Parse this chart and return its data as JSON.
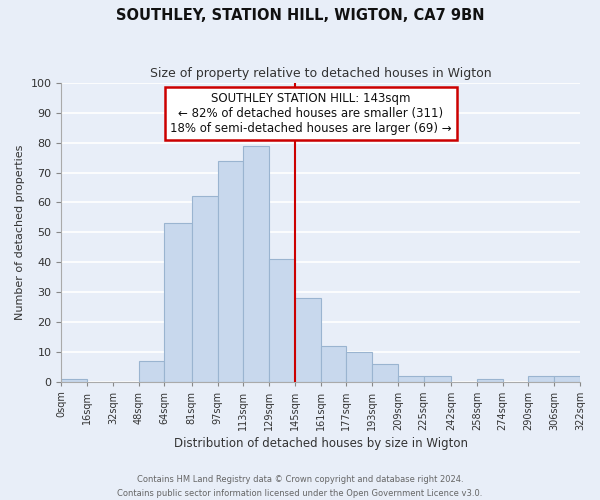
{
  "title": "SOUTHLEY, STATION HILL, WIGTON, CA7 9BN",
  "subtitle": "Size of property relative to detached houses in Wigton",
  "xlabel": "Distribution of detached houses by size in Wigton",
  "ylabel": "Number of detached properties",
  "bar_edges": [
    0,
    16,
    32,
    48,
    64,
    81,
    97,
    113,
    129,
    145,
    161,
    177,
    193,
    209,
    225,
    242,
    258,
    274,
    290,
    306,
    322
  ],
  "bar_heights": [
    1,
    0,
    0,
    7,
    53,
    62,
    74,
    79,
    41,
    28,
    12,
    10,
    6,
    2,
    2,
    0,
    1,
    0,
    2,
    2
  ],
  "bar_color": "#c8d8ed",
  "bar_edge_color": "#9ab4d0",
  "tick_labels": [
    "0sqm",
    "16sqm",
    "32sqm",
    "48sqm",
    "64sqm",
    "81sqm",
    "97sqm",
    "113sqm",
    "129sqm",
    "145sqm",
    "161sqm",
    "177sqm",
    "193sqm",
    "209sqm",
    "225sqm",
    "242sqm",
    "258sqm",
    "274sqm",
    "290sqm",
    "306sqm",
    "322sqm"
  ],
  "ylim": [
    0,
    100
  ],
  "yticks": [
    0,
    10,
    20,
    30,
    40,
    50,
    60,
    70,
    80,
    90,
    100
  ],
  "vline_x": 145,
  "vline_color": "#cc0000",
  "annotation_title": "SOUTHLEY STATION HILL: 143sqm",
  "annotation_line1": "← 82% of detached houses are smaller (311)",
  "annotation_line2": "18% of semi-detached houses are larger (69) →",
  "annotation_box_color": "#ffffff",
  "annotation_box_edgecolor": "#cc0000",
  "footer_line1": "Contains HM Land Registry data © Crown copyright and database right 2024.",
  "footer_line2": "Contains public sector information licensed under the Open Government Licence v3.0.",
  "bg_color": "#e8eef8",
  "grid_color": "#ffffff",
  "plot_bg_color": "#e8eef8"
}
